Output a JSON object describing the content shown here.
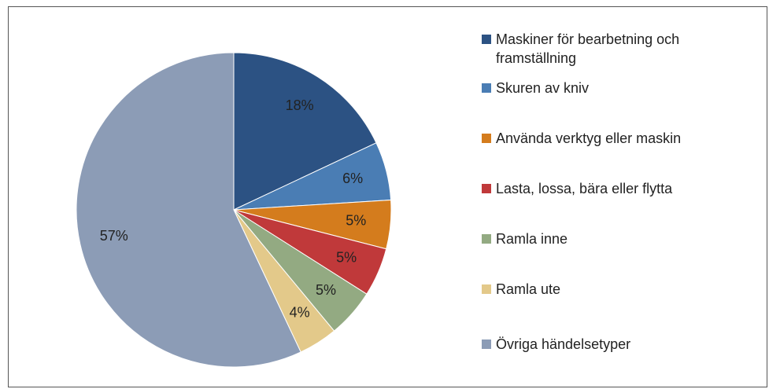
{
  "chart_data": {
    "type": "pie",
    "categories": [
      "Maskiner för bearbetning och framställning",
      "Skuren av kniv",
      "Använda verktyg eller maskin",
      "Lasta, lossa, bära eller flytta",
      "Ramla inne",
      "Ramla ute",
      "Övriga händelsetyper"
    ],
    "values": [
      18,
      6,
      5,
      5,
      5,
      4,
      57
    ],
    "value_labels": [
      "18%",
      "6%",
      "5%",
      "5%",
      "5%",
      "4%",
      "57%"
    ],
    "colors": [
      "#2c5283",
      "#4a7db4",
      "#d47c1d",
      "#c0393a",
      "#93aa82",
      "#e3c98a",
      "#8c9cb6"
    ],
    "legend": "right"
  }
}
